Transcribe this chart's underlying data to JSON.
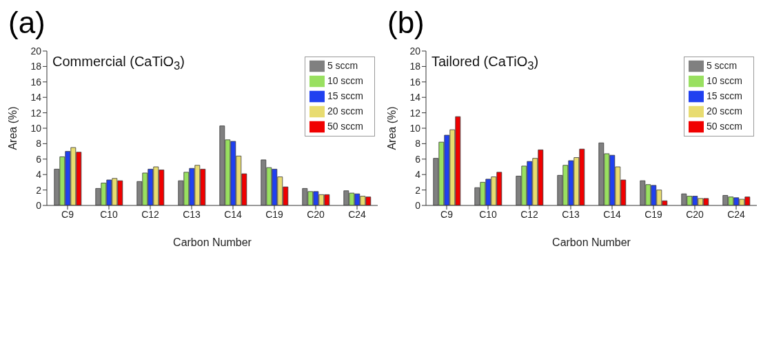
{
  "chart_data": [
    {
      "type": "bar",
      "title": "(a)",
      "subtitle": "Commercial (CaTiO$_{3}$)",
      "xlabel": "Carbon Number",
      "ylabel": "Area (%)",
      "categories": [
        "C9",
        "C10",
        "C12",
        "C13",
        "C14",
        "C19",
        "C20",
        "C24"
      ],
      "ylim": [
        0,
        20
      ],
      "yticks": [
        0,
        2,
        4,
        6,
        8,
        10,
        12,
        14,
        16,
        18,
        20
      ],
      "legend": "top right",
      "grid": false,
      "series": [
        {
          "name": "5 sccm",
          "color": "#808080",
          "values": [
            4.7,
            2.2,
            3.1,
            3.2,
            10.3,
            5.9,
            2.2,
            1.9
          ]
        },
        {
          "name": "10 sccm",
          "color": "#99e060",
          "values": [
            6.3,
            2.9,
            4.2,
            4.3,
            8.5,
            4.9,
            1.8,
            1.6
          ]
        },
        {
          "name": "15 sccm",
          "color": "#2040f0",
          "values": [
            7.0,
            3.3,
            4.7,
            4.8,
            8.3,
            4.7,
            1.8,
            1.5
          ]
        },
        {
          "name": "20 sccm",
          "color": "#e8dc70",
          "values": [
            7.5,
            3.5,
            5.0,
            5.2,
            6.4,
            3.7,
            1.4,
            1.2
          ]
        },
        {
          "name": "50 sccm",
          "color": "#f00000",
          "values": [
            6.9,
            3.2,
            4.6,
            4.7,
            4.1,
            2.4,
            1.4,
            1.1
          ]
        }
      ]
    },
    {
      "type": "bar",
      "title": "(b)",
      "subtitle": "Tailored (CaTiO$_{3}$)",
      "xlabel": "Carbon Number",
      "ylabel": "Area (%)",
      "categories": [
        "C9",
        "C10",
        "C12",
        "C13",
        "C14",
        "C19",
        "C20",
        "C24"
      ],
      "ylim": [
        0,
        20
      ],
      "yticks": [
        0,
        2,
        4,
        6,
        8,
        10,
        12,
        14,
        16,
        18,
        20
      ],
      "legend": "top right",
      "grid": false,
      "series": [
        {
          "name": "5 sccm",
          "color": "#808080",
          "values": [
            6.1,
            2.3,
            3.8,
            3.9,
            8.1,
            3.2,
            1.5,
            1.3
          ]
        },
        {
          "name": "10 sccm",
          "color": "#99e060",
          "values": [
            8.2,
            3.0,
            5.1,
            5.2,
            6.7,
            2.7,
            1.2,
            1.1
          ]
        },
        {
          "name": "15 sccm",
          "color": "#2040f0",
          "values": [
            9.1,
            3.4,
            5.7,
            5.8,
            6.5,
            2.6,
            1.2,
            1.0
          ]
        },
        {
          "name": "20 sccm",
          "color": "#e8dc70",
          "values": [
            9.8,
            3.7,
            6.1,
            6.2,
            5.0,
            2.0,
            0.9,
            0.8
          ]
        },
        {
          "name": "50 sccm",
          "color": "#f00000",
          "values": [
            11.5,
            4.3,
            7.2,
            7.3,
            3.3,
            0.6,
            0.9,
            1.1
          ]
        }
      ]
    }
  ]
}
